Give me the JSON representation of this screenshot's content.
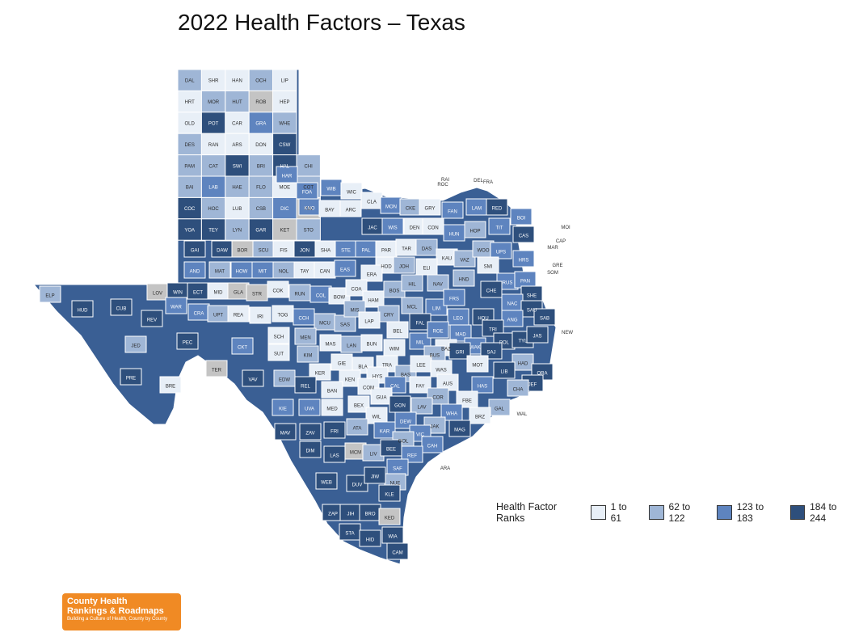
{
  "title": "2022 Health Factors – Texas",
  "legend": {
    "title": "Health Factor Ranks",
    "items": [
      {
        "label": "1 to 61",
        "color": "#e8eff7"
      },
      {
        "label": "62 to 122",
        "color": "#9fb6d6"
      },
      {
        "label": "123 to 183",
        "color": "#5e84bf"
      },
      {
        "label": "184 to 244",
        "color": "#2e4f7c"
      }
    ]
  },
  "logo": {
    "line1": "County Health",
    "line2": "Rankings & Roadmaps",
    "line3": "Building a Culture of Health, County by County"
  },
  "panhandle": {
    "rows": [
      [
        "DAL",
        "SHR",
        "HAN",
        "OCH",
        "LIP"
      ],
      [
        "HRT",
        "MOR",
        "HUT",
        "ROB",
        "HEP"
      ],
      [
        "OLD",
        "POT",
        "CAR",
        "GRA",
        "WHE"
      ],
      [
        "DES",
        "RAN",
        "ARS",
        "DON",
        "CSW"
      ],
      [
        "PAM",
        "CAT",
        "SWI",
        "BRI",
        "HAL",
        "CHI"
      ],
      [
        "BAI",
        "LAB",
        "HAE",
        "FLO",
        "MOE",
        "COT"
      ],
      [
        "COC",
        "HOC",
        "LUB",
        "CSB",
        "DIC",
        "KIN"
      ],
      [
        "YOA",
        "TEY",
        "LYN",
        "GAR",
        "KET",
        "STO"
      ]
    ],
    "tiers": [
      [
        2,
        1,
        1,
        2,
        1
      ],
      [
        1,
        2,
        2,
        0,
        1
      ],
      [
        1,
        4,
        1,
        3,
        2
      ],
      [
        2,
        1,
        1,
        1,
        4
      ],
      [
        2,
        2,
        4,
        2,
        4,
        2
      ],
      [
        2,
        3,
        2,
        2,
        1,
        2
      ],
      [
        4,
        2,
        1,
        2,
        3,
        0
      ],
      [
        4,
        4,
        2,
        4,
        0,
        2
      ]
    ]
  },
  "outside_labels": [
    "RAI",
    "ROC",
    "DEL",
    "FRA",
    "MOI",
    "CAP",
    "MAR",
    "GRE",
    "SOM",
    "NEW",
    "WAL",
    "ARA"
  ],
  "counties": [
    {
      "code": "HAR",
      "tier": 3
    },
    {
      "code": "FOA",
      "tier": 3
    },
    {
      "code": "WIB",
      "tier": 3
    },
    {
      "code": "WIC",
      "tier": 1
    },
    {
      "code": "CLA",
      "tier": 1
    },
    {
      "code": "MON",
      "tier": 3
    },
    {
      "code": "CKE",
      "tier": 2
    },
    {
      "code": "GRY",
      "tier": 1
    },
    {
      "code": "FAN",
      "tier": 3
    },
    {
      "code": "LAM",
      "tier": 3
    },
    {
      "code": "RED",
      "tier": 4
    },
    {
      "code": "BOI",
      "tier": 3
    },
    {
      "code": "KNO",
      "tier": 3
    },
    {
      "code": "BAY",
      "tier": 1
    },
    {
      "code": "ARC",
      "tier": 1
    },
    {
      "code": "JAC",
      "tier": 4
    },
    {
      "code": "WIS",
      "tier": 3
    },
    {
      "code": "DEN",
      "tier": 1
    },
    {
      "code": "CON",
      "tier": 1
    },
    {
      "code": "HUN",
      "tier": 3
    },
    {
      "code": "HOP",
      "tier": 2
    },
    {
      "code": "TIT",
      "tier": 3
    },
    {
      "code": "CAS",
      "tier": 4
    },
    {
      "code": "GAI",
      "tier": 4
    },
    {
      "code": "DAW",
      "tier": 4
    },
    {
      "code": "BOR",
      "tier": 0
    },
    {
      "code": "SCU",
      "tier": 2
    },
    {
      "code": "FIS",
      "tier": 1
    },
    {
      "code": "JON",
      "tier": 4
    },
    {
      "code": "SHA",
      "tier": 1
    },
    {
      "code": "STE",
      "tier": 3
    },
    {
      "code": "PAL",
      "tier": 3
    },
    {
      "code": "PAR",
      "tier": 1
    },
    {
      "code": "TAR",
      "tier": 1
    },
    {
      "code": "DAS",
      "tier": 2
    },
    {
      "code": "KAU",
      "tier": 1
    },
    {
      "code": "VAZ",
      "tier": 2
    },
    {
      "code": "WOO",
      "tier": 2
    },
    {
      "code": "UPS",
      "tier": 3
    },
    {
      "code": "HRS",
      "tier": 3
    },
    {
      "code": "AND",
      "tier": 3
    },
    {
      "code": "MAT",
      "tier": 2
    },
    {
      "code": "HOW",
      "tier": 3
    },
    {
      "code": "MIT",
      "tier": 3
    },
    {
      "code": "NOL",
      "tier": 2
    },
    {
      "code": "TAY",
      "tier": 1
    },
    {
      "code": "CAN",
      "tier": 1
    },
    {
      "code": "EAS",
      "tier": 3
    },
    {
      "code": "HOD",
      "tier": 1
    },
    {
      "code": "JOH",
      "tier": 2
    },
    {
      "code": "ELI",
      "tier": 1
    },
    {
      "code": "SMI",
      "tier": 1
    },
    {
      "code": "ERA",
      "tier": 1
    },
    {
      "code": "RUS",
      "tier": 3
    },
    {
      "code": "PAN",
      "tier": 3
    },
    {
      "code": "LOV",
      "tier": 0
    },
    {
      "code": "WIN",
      "tier": 4
    },
    {
      "code": "ECT",
      "tier": 4
    },
    {
      "code": "MID",
      "tier": 1
    },
    {
      "code": "GLA",
      "tier": 0
    },
    {
      "code": "STR",
      "tier": 0
    },
    {
      "code": "COK",
      "tier": 1
    },
    {
      "code": "RUN",
      "tier": 2
    },
    {
      "code": "COL",
      "tier": 3
    },
    {
      "code": "BOW",
      "tier": 1
    },
    {
      "code": "COA",
      "tier": 1
    },
    {
      "code": "BOS",
      "tier": 2
    },
    {
      "code": "HIL",
      "tier": 2
    },
    {
      "code": "NAV",
      "tier": 2
    },
    {
      "code": "HND",
      "tier": 2
    },
    {
      "code": "CHE",
      "tier": 4
    },
    {
      "code": "SHE",
      "tier": 4
    },
    {
      "code": "ELP",
      "tier": 2
    },
    {
      "code": "HUD",
      "tier": 4
    },
    {
      "code": "CUB",
      "tier": 4
    },
    {
      "code": "REV",
      "tier": 4
    },
    {
      "code": "WAR",
      "tier": 3
    },
    {
      "code": "CRA",
      "tier": 3
    },
    {
      "code": "UPT",
      "tier": 2
    },
    {
      "code": "REA",
      "tier": 1
    },
    {
      "code": "IRI",
      "tier": 1
    },
    {
      "code": "TOG",
      "tier": 1
    },
    {
      "code": "CCH",
      "tier": 3
    },
    {
      "code": "MCU",
      "tier": 2
    },
    {
      "code": "SAS",
      "tier": 2
    },
    {
      "code": "HAM",
      "tier": 1
    },
    {
      "code": "MIS",
      "tier": 2
    },
    {
      "code": "CRY",
      "tier": 2
    },
    {
      "code": "MCL",
      "tier": 2
    },
    {
      "code": "LIM",
      "tier": 3
    },
    {
      "code": "FRS",
      "tier": 3
    },
    {
      "code": "NAC",
      "tier": 3
    },
    {
      "code": "SAU",
      "tier": 4
    },
    {
      "code": "SAB",
      "tier": 4
    },
    {
      "code": "JED",
      "tier": 2
    },
    {
      "code": "PEC",
      "tier": 4
    },
    {
      "code": "CKT",
      "tier": 3
    },
    {
      "code": "SCH",
      "tier": 1
    },
    {
      "code": "MEN",
      "tier": 2
    },
    {
      "code": "LAP",
      "tier": 1
    },
    {
      "code": "BEL",
      "tier": 1
    },
    {
      "code": "FAL",
      "tier": 4
    },
    {
      "code": "LEO",
      "tier": 3
    },
    {
      "code": "HOU",
      "tier": 4
    },
    {
      "code": "ANG",
      "tier": 3
    },
    {
      "code": "PRE",
      "tier": 4
    },
    {
      "code": "BRE",
      "tier": 1
    },
    {
      "code": "TER",
      "tier": 0
    },
    {
      "code": "SUT",
      "tier": 1
    },
    {
      "code": "KIM",
      "tier": 2
    },
    {
      "code": "MAS",
      "tier": 1
    },
    {
      "code": "LAN",
      "tier": 2
    },
    {
      "code": "BUN",
      "tier": 1
    },
    {
      "code": "WIM",
      "tier": 1
    },
    {
      "code": "MIL",
      "tier": 3
    },
    {
      "code": "ROE",
      "tier": 3
    },
    {
      "code": "MAD",
      "tier": 3
    },
    {
      "code": "BAZ",
      "tier": 1
    },
    {
      "code": "WAK",
      "tier": 3
    },
    {
      "code": "TRI",
      "tier": 4
    },
    {
      "code": "POL",
      "tier": 4
    },
    {
      "code": "TYL",
      "tier": 4
    },
    {
      "code": "JAS",
      "tier": 4
    },
    {
      "code": "VAV",
      "tier": 4
    },
    {
      "code": "EDW",
      "tier": 2
    },
    {
      "code": "KER",
      "tier": 1
    },
    {
      "code": "GIE",
      "tier": 1
    },
    {
      "code": "BLA",
      "tier": 1
    },
    {
      "code": "TRA",
      "tier": 1
    },
    {
      "code": "BUS",
      "tier": 2
    },
    {
      "code": "GRI",
      "tier": 4
    },
    {
      "code": "SAJ",
      "tier": 4
    },
    {
      "code": "MOT",
      "tier": 1
    },
    {
      "code": "HAD",
      "tier": 2
    },
    {
      "code": "LIB",
      "tier": 4
    },
    {
      "code": "ORA",
      "tier": 4
    },
    {
      "code": "REL",
      "tier": 4
    },
    {
      "code": "KEN",
      "tier": 1
    },
    {
      "code": "HYS",
      "tier": 1
    },
    {
      "code": "BAS",
      "tier": 2
    },
    {
      "code": "LEE",
      "tier": 1
    },
    {
      "code": "WAS",
      "tier": 1
    },
    {
      "code": "AUS",
      "tier": 1
    },
    {
      "code": "JEF",
      "tier": 4
    },
    {
      "code": "CHA",
      "tier": 2
    },
    {
      "code": "BAN",
      "tier": 1
    },
    {
      "code": "COM",
      "tier": 1
    },
    {
      "code": "CAL",
      "tier": 3
    },
    {
      "code": "FAY",
      "tier": 1
    },
    {
      "code": "HAS",
      "tier": 3
    },
    {
      "code": "FBE",
      "tier": 1
    },
    {
      "code": "GAL",
      "tier": 2
    },
    {
      "code": "KIE",
      "tier": 3
    },
    {
      "code": "UVA",
      "tier": 3
    },
    {
      "code": "MED",
      "tier": 1
    },
    {
      "code": "BEX",
      "tier": 1
    },
    {
      "code": "GUA",
      "tier": 1
    },
    {
      "code": "GON",
      "tier": 4
    },
    {
      "code": "COR",
      "tier": 2
    },
    {
      "code": "LAV",
      "tier": 2
    },
    {
      "code": "WIL",
      "tier": 1
    },
    {
      "code": "ATA",
      "tier": 2
    },
    {
      "code": "WHA",
      "tier": 3
    },
    {
      "code": "BRZ",
      "tier": 1
    },
    {
      "code": "DEW",
      "tier": 3
    },
    {
      "code": "KAR",
      "tier": 3
    },
    {
      "code": "JAK",
      "tier": 2
    },
    {
      "code": "MAG",
      "tier": 4
    },
    {
      "code": "VIC",
      "tier": 3
    },
    {
      "code": "GOL",
      "tier": 2
    },
    {
      "code": "CAH",
      "tier": 3
    },
    {
      "code": "MAV",
      "tier": 4
    },
    {
      "code": "ZAV",
      "tier": 4
    },
    {
      "code": "FRI",
      "tier": 4
    },
    {
      "code": "MCM",
      "tier": 0
    },
    {
      "code": "LIV",
      "tier": 2
    },
    {
      "code": "BEE",
      "tier": 4
    },
    {
      "code": "REF",
      "tier": 3
    },
    {
      "code": "DIM",
      "tier": 4
    },
    {
      "code": "LAS",
      "tier": 4
    },
    {
      "code": "SAF",
      "tier": 3
    },
    {
      "code": "NUE",
      "tier": 2
    },
    {
      "code": "WEB",
      "tier": 4
    },
    {
      "code": "DUV",
      "tier": 4
    },
    {
      "code": "JIW",
      "tier": 4
    },
    {
      "code": "KLE",
      "tier": 4
    },
    {
      "code": "ZAP",
      "tier": 4
    },
    {
      "code": "JIH",
      "tier": 4
    },
    {
      "code": "BRO",
      "tier": 4
    },
    {
      "code": "KED",
      "tier": 0
    },
    {
      "code": "STA",
      "tier": 4
    },
    {
      "code": "HID",
      "tier": 4
    },
    {
      "code": "WIA",
      "tier": 4
    },
    {
      "code": "CAM",
      "tier": 4
    }
  ]
}
